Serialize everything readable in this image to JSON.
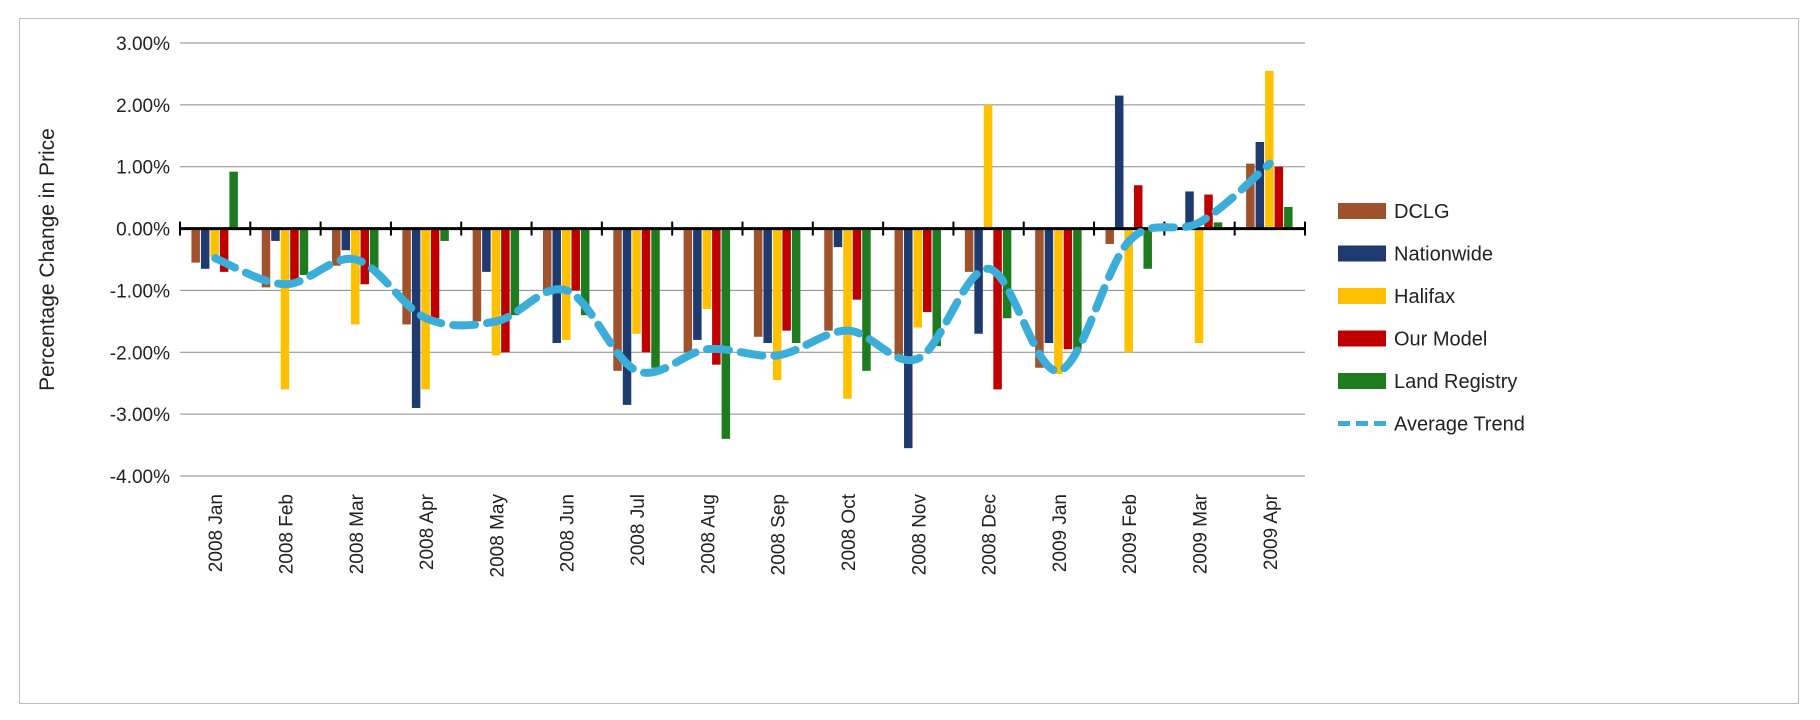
{
  "chart_data": {
    "type": "bar",
    "title": "",
    "ylabel": "Percentage Change in Price",
    "xlabel": "",
    "ylim": [
      -4,
      3
    ],
    "yticks": [
      "3.00%",
      "2.00%",
      "1.00%",
      "0.00%",
      "-1.00%",
      "-2.00%",
      "-3.00%",
      "-4.00%"
    ],
    "ytick_values": [
      3,
      2,
      1,
      0,
      -1,
      -2,
      -3,
      -4
    ],
    "categories": [
      "2008 Jan",
      "2008 Feb",
      "2008 Mar",
      "2008 Apr",
      "2008 May",
      "2008 Jun",
      "2008 Jul",
      "2008 Aug",
      "2008 Sep",
      "2008 Oct",
      "2008 Nov",
      "2008 Dec",
      "2009 Jan",
      "2009 Feb",
      "2009 Mar",
      "2009 Apr"
    ],
    "grid": true,
    "legend_position": "right",
    "series": [
      {
        "name": "DCLG",
        "color": "#a0522d",
        "values": [
          -0.55,
          -0.95,
          -0.6,
          -1.55,
          -1.5,
          -1.0,
          -2.3,
          -2.0,
          -1.75,
          -1.65,
          -2.05,
          -0.7,
          -2.25,
          -0.25,
          0.0,
          1.05
        ]
      },
      {
        "name": "Nationwide",
        "color": "#1f3a6e",
        "values": [
          -0.65,
          -0.2,
          -0.35,
          -2.9,
          -0.7,
          -1.85,
          -2.85,
          -1.8,
          -1.85,
          -0.3,
          -3.55,
          -1.7,
          -1.85,
          2.15,
          0.6,
          1.4
        ]
      },
      {
        "name": "Halifax",
        "color": "#ffc000",
        "values": [
          -0.45,
          -2.6,
          -1.55,
          -2.6,
          -2.05,
          -1.8,
          -1.7,
          -1.3,
          -2.45,
          -2.75,
          -1.6,
          2.0,
          -2.35,
          -2.0,
          -1.85,
          2.55
        ]
      },
      {
        "name": "Our Model",
        "color": "#c00000",
        "values": [
          -0.7,
          -0.85,
          -0.9,
          -1.45,
          -2.0,
          -1.0,
          -2.0,
          -2.2,
          -1.65,
          -1.15,
          -1.35,
          -2.6,
          -1.95,
          0.7,
          0.55,
          1.0
        ]
      },
      {
        "name": "Land Registry",
        "color": "#1e7b1e",
        "values": [
          0.92,
          -0.75,
          -0.65,
          -0.2,
          -1.4,
          -1.4,
          -2.25,
          -3.4,
          -1.85,
          -2.3,
          -1.9,
          -1.45,
          -1.95,
          -0.65,
          0.1,
          0.35
        ]
      }
    ],
    "trend": {
      "name": "Average Trend",
      "color": "#3aaed8",
      "values": [
        -0.48,
        -0.9,
        -0.5,
        -1.45,
        -1.5,
        -1.0,
        -2.3,
        -1.95,
        -2.05,
        -1.65,
        -2.1,
        -0.65,
        -2.3,
        -0.2,
        0.1,
        1.05
      ]
    }
  }
}
